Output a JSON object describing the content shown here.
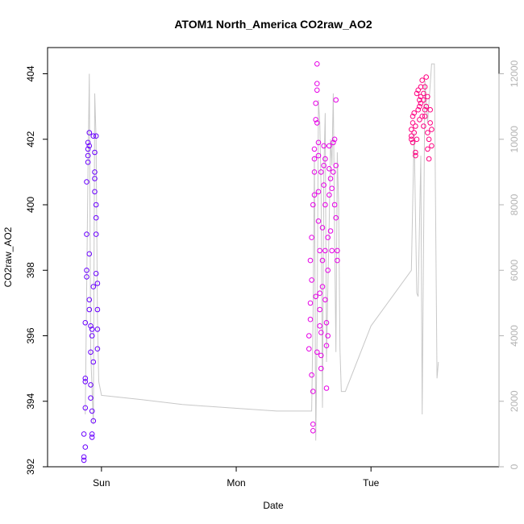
{
  "chart_data": {
    "type": "scatter",
    "title": "ATOM1 North_America CO2raw_AO2",
    "xlabel": "Date",
    "ylabel": "CO2raw_AO2",
    "x_ticks": [
      "Sun",
      "Mon",
      "Tue"
    ],
    "x_tick_positions_day": [
      1,
      2,
      3
    ],
    "xlim_day": [
      0.6,
      3.95
    ],
    "ylim": [
      392,
      404.8
    ],
    "y_ticks": [
      392,
      394,
      396,
      398,
      400,
      402,
      404
    ],
    "y2lim": [
      0,
      12800
    ],
    "y2_ticks": [
      0,
      2000,
      4000,
      6000,
      8000,
      10000,
      12000
    ],
    "grid": false,
    "legend": "none",
    "colors": {
      "line": "#c8c8c8",
      "series_early": "#6a00ff",
      "series_mid": "#e600e6",
      "series_late": "#ff0080",
      "axis": "#000000",
      "right_axis": "#b3b3b3"
    },
    "line_series": [
      [
        0.88,
        1600
      ],
      [
        0.9,
        9000
      ],
      [
        0.91,
        12000
      ],
      [
        0.92,
        3500
      ],
      [
        0.94,
        1300
      ],
      [
        0.95,
        11400
      ],
      [
        0.96,
        10000
      ],
      [
        0.97,
        4500
      ],
      [
        0.98,
        2600
      ],
      [
        1.0,
        2180
      ],
      [
        1.3,
        2050
      ],
      [
        1.6,
        1900
      ],
      [
        1.95,
        1800
      ],
      [
        2.3,
        1700
      ],
      [
        2.56,
        1700
      ],
      [
        2.57,
        4500
      ],
      [
        2.58,
        9500
      ],
      [
        2.59,
        800
      ],
      [
        2.6,
        4000
      ],
      [
        2.61,
        11200
      ],
      [
        2.62,
        10500
      ],
      [
        2.63,
        8500
      ],
      [
        2.64,
        1800
      ],
      [
        2.65,
        9000
      ],
      [
        2.66,
        10800
      ],
      [
        2.67,
        3200
      ],
      [
        2.68,
        5500
      ],
      [
        2.69,
        7500
      ],
      [
        2.7,
        10000
      ],
      [
        2.71,
        9200
      ],
      [
        2.72,
        11400
      ],
      [
        2.73,
        7000
      ],
      [
        2.74,
        3500
      ],
      [
        2.75,
        9600
      ],
      [
        2.76,
        8000
      ],
      [
        2.77,
        3600
      ],
      [
        2.78,
        2300
      ],
      [
        2.81,
        2300
      ],
      [
        3.0,
        4300
      ],
      [
        3.3,
        6000
      ],
      [
        3.32,
        10200
      ],
      [
        3.34,
        5300
      ],
      [
        3.35,
        5200
      ],
      [
        3.37,
        9500
      ],
      [
        3.38,
        1600
      ],
      [
        3.4,
        11800
      ],
      [
        3.42,
        10500
      ],
      [
        3.45,
        12300
      ],
      [
        3.47,
        12300
      ],
      [
        3.49,
        2700
      ],
      [
        3.5,
        3200
      ]
    ],
    "point_series": [
      {
        "x": 0.87,
        "y": 392.2
      },
      {
        "x": 0.87,
        "y": 393.0
      },
      {
        "x": 0.87,
        "y": 392.3
      },
      {
        "x": 0.88,
        "y": 392.6
      },
      {
        "x": 0.88,
        "y": 393.8
      },
      {
        "x": 0.88,
        "y": 394.7
      },
      {
        "x": 0.88,
        "y": 394.6
      },
      {
        "x": 0.88,
        "y": 396.4
      },
      {
        "x": 0.89,
        "y": 399.1
      },
      {
        "x": 0.89,
        "y": 397.8
      },
      {
        "x": 0.89,
        "y": 398.0
      },
      {
        "x": 0.9,
        "y": 401.3
      },
      {
        "x": 0.9,
        "y": 401.5
      },
      {
        "x": 0.9,
        "y": 401.7
      },
      {
        "x": 0.91,
        "y": 401.8
      },
      {
        "x": 0.91,
        "y": 402.2
      },
      {
        "x": 0.91,
        "y": 398.5
      },
      {
        "x": 0.91,
        "y": 397.1
      },
      {
        "x": 0.91,
        "y": 396.8
      },
      {
        "x": 0.92,
        "y": 396.3
      },
      {
        "x": 0.92,
        "y": 395.5
      },
      {
        "x": 0.92,
        "y": 394.5
      },
      {
        "x": 0.93,
        "y": 393.7
      },
      {
        "x": 0.93,
        "y": 392.9
      },
      {
        "x": 0.93,
        "y": 393.0
      },
      {
        "x": 0.93,
        "y": 396.2
      },
      {
        "x": 0.94,
        "y": 395.2
      },
      {
        "x": 0.94,
        "y": 393.4
      },
      {
        "x": 0.94,
        "y": 402.1
      },
      {
        "x": 0.95,
        "y": 401.6
      },
      {
        "x": 0.95,
        "y": 400.8
      },
      {
        "x": 0.95,
        "y": 400.4
      },
      {
        "x": 0.96,
        "y": 400.0
      },
      {
        "x": 0.96,
        "y": 399.1
      },
      {
        "x": 0.96,
        "y": 397.9
      },
      {
        "x": 0.97,
        "y": 397.6
      },
      {
        "x": 0.97,
        "y": 396.8
      },
      {
        "x": 0.97,
        "y": 395.6
      },
      {
        "x": 0.96,
        "y": 402.1
      },
      {
        "x": 0.95,
        "y": 401.0
      },
      {
        "x": 0.94,
        "y": 397.5
      },
      {
        "x": 0.93,
        "y": 396.0
      },
      {
        "x": 0.92,
        "y": 394.1
      },
      {
        "x": 0.9,
        "y": 401.9
      },
      {
        "x": 0.89,
        "y": 400.7
      },
      {
        "x": 0.96,
        "y": 399.6
      },
      {
        "x": 0.97,
        "y": 396.2
      },
      {
        "x": 2.54,
        "y": 395.6
      },
      {
        "x": 2.54,
        "y": 396.0
      },
      {
        "x": 2.55,
        "y": 396.5
      },
      {
        "x": 2.55,
        "y": 397.0
      },
      {
        "x": 2.55,
        "y": 398.3
      },
      {
        "x": 2.56,
        "y": 397.7
      },
      {
        "x": 2.56,
        "y": 399.0
      },
      {
        "x": 2.56,
        "y": 394.8
      },
      {
        "x": 2.57,
        "y": 393.3
      },
      {
        "x": 2.57,
        "y": 393.1
      },
      {
        "x": 2.57,
        "y": 394.3
      },
      {
        "x": 2.57,
        "y": 400.0
      },
      {
        "x": 2.58,
        "y": 400.3
      },
      {
        "x": 2.58,
        "y": 401.0
      },
      {
        "x": 2.58,
        "y": 401.4
      },
      {
        "x": 2.58,
        "y": 401.7
      },
      {
        "x": 2.59,
        "y": 402.6
      },
      {
        "x": 2.59,
        "y": 403.1
      },
      {
        "x": 2.6,
        "y": 403.7
      },
      {
        "x": 2.6,
        "y": 404.3
      },
      {
        "x": 2.6,
        "y": 403.5
      },
      {
        "x": 2.6,
        "y": 402.5
      },
      {
        "x": 2.61,
        "y": 401.9
      },
      {
        "x": 2.61,
        "y": 401.5
      },
      {
        "x": 2.61,
        "y": 400.4
      },
      {
        "x": 2.61,
        "y": 399.5
      },
      {
        "x": 2.62,
        "y": 398.6
      },
      {
        "x": 2.62,
        "y": 397.3
      },
      {
        "x": 2.62,
        "y": 396.8
      },
      {
        "x": 2.62,
        "y": 396.3
      },
      {
        "x": 2.63,
        "y": 395.4
      },
      {
        "x": 2.63,
        "y": 395.0
      },
      {
        "x": 2.63,
        "y": 396.1
      },
      {
        "x": 2.64,
        "y": 397.5
      },
      {
        "x": 2.64,
        "y": 398.3
      },
      {
        "x": 2.64,
        "y": 399.3
      },
      {
        "x": 2.65,
        "y": 400.6
      },
      {
        "x": 2.65,
        "y": 401.2
      },
      {
        "x": 2.65,
        "y": 401.8
      },
      {
        "x": 2.66,
        "y": 400.0
      },
      {
        "x": 2.66,
        "y": 398.6
      },
      {
        "x": 2.66,
        "y": 397.1
      },
      {
        "x": 2.67,
        "y": 396.4
      },
      {
        "x": 2.67,
        "y": 395.7
      },
      {
        "x": 2.67,
        "y": 394.4
      },
      {
        "x": 2.68,
        "y": 396.0
      },
      {
        "x": 2.68,
        "y": 398.0
      },
      {
        "x": 2.68,
        "y": 399.0
      },
      {
        "x": 2.69,
        "y": 400.3
      },
      {
        "x": 2.69,
        "y": 401.1
      },
      {
        "x": 2.69,
        "y": 401.8
      },
      {
        "x": 2.7,
        "y": 400.8
      },
      {
        "x": 2.7,
        "y": 399.2
      },
      {
        "x": 2.71,
        "y": 398.6
      },
      {
        "x": 2.71,
        "y": 400.5
      },
      {
        "x": 2.72,
        "y": 401.0
      },
      {
        "x": 2.72,
        "y": 401.9
      },
      {
        "x": 2.73,
        "y": 400.0
      },
      {
        "x": 2.73,
        "y": 402.0
      },
      {
        "x": 2.74,
        "y": 401.2
      },
      {
        "x": 2.74,
        "y": 403.2
      },
      {
        "x": 2.75,
        "y": 398.3
      },
      {
        "x": 2.75,
        "y": 398.6
      },
      {
        "x": 2.74,
        "y": 399.6
      },
      {
        "x": 2.59,
        "y": 397.2
      },
      {
        "x": 2.6,
        "y": 395.5
      },
      {
        "x": 2.63,
        "y": 401.0
      },
      {
        "x": 2.66,
        "y": 401.4
      },
      {
        "x": 3.3,
        "y": 402.0
      },
      {
        "x": 3.3,
        "y": 402.3
      },
      {
        "x": 3.31,
        "y": 401.9
      },
      {
        "x": 3.31,
        "y": 402.5
      },
      {
        "x": 3.32,
        "y": 402.2
      },
      {
        "x": 3.32,
        "y": 402.8
      },
      {
        "x": 3.33,
        "y": 401.6
      },
      {
        "x": 3.33,
        "y": 401.5
      },
      {
        "x": 3.34,
        "y": 402.0
      },
      {
        "x": 3.34,
        "y": 403.4
      },
      {
        "x": 3.35,
        "y": 403.5
      },
      {
        "x": 3.35,
        "y": 402.9
      },
      {
        "x": 3.36,
        "y": 403.0
      },
      {
        "x": 3.36,
        "y": 402.6
      },
      {
        "x": 3.37,
        "y": 403.1
      },
      {
        "x": 3.37,
        "y": 403.3
      },
      {
        "x": 3.38,
        "y": 403.8
      },
      {
        "x": 3.38,
        "y": 402.7
      },
      {
        "x": 3.39,
        "y": 403.2
      },
      {
        "x": 3.39,
        "y": 402.4
      },
      {
        "x": 3.4,
        "y": 403.6
      },
      {
        "x": 3.4,
        "y": 402.9
      },
      {
        "x": 3.41,
        "y": 403.9
      },
      {
        "x": 3.41,
        "y": 403.0
      },
      {
        "x": 3.42,
        "y": 402.2
      },
      {
        "x": 3.42,
        "y": 401.7
      },
      {
        "x": 3.43,
        "y": 401.4
      },
      {
        "x": 3.43,
        "y": 402.0
      },
      {
        "x": 3.44,
        "y": 402.5
      },
      {
        "x": 3.44,
        "y": 402.9
      },
      {
        "x": 3.45,
        "y": 402.3
      },
      {
        "x": 3.45,
        "y": 401.8
      },
      {
        "x": 3.3,
        "y": 402.1
      },
      {
        "x": 3.31,
        "y": 402.7
      },
      {
        "x": 3.33,
        "y": 402.4
      },
      {
        "x": 3.36,
        "y": 403.2
      },
      {
        "x": 3.37,
        "y": 403.6
      },
      {
        "x": 3.39,
        "y": 403.4
      },
      {
        "x": 3.4,
        "y": 402.7
      },
      {
        "x": 3.42,
        "y": 403.3
      }
    ]
  }
}
